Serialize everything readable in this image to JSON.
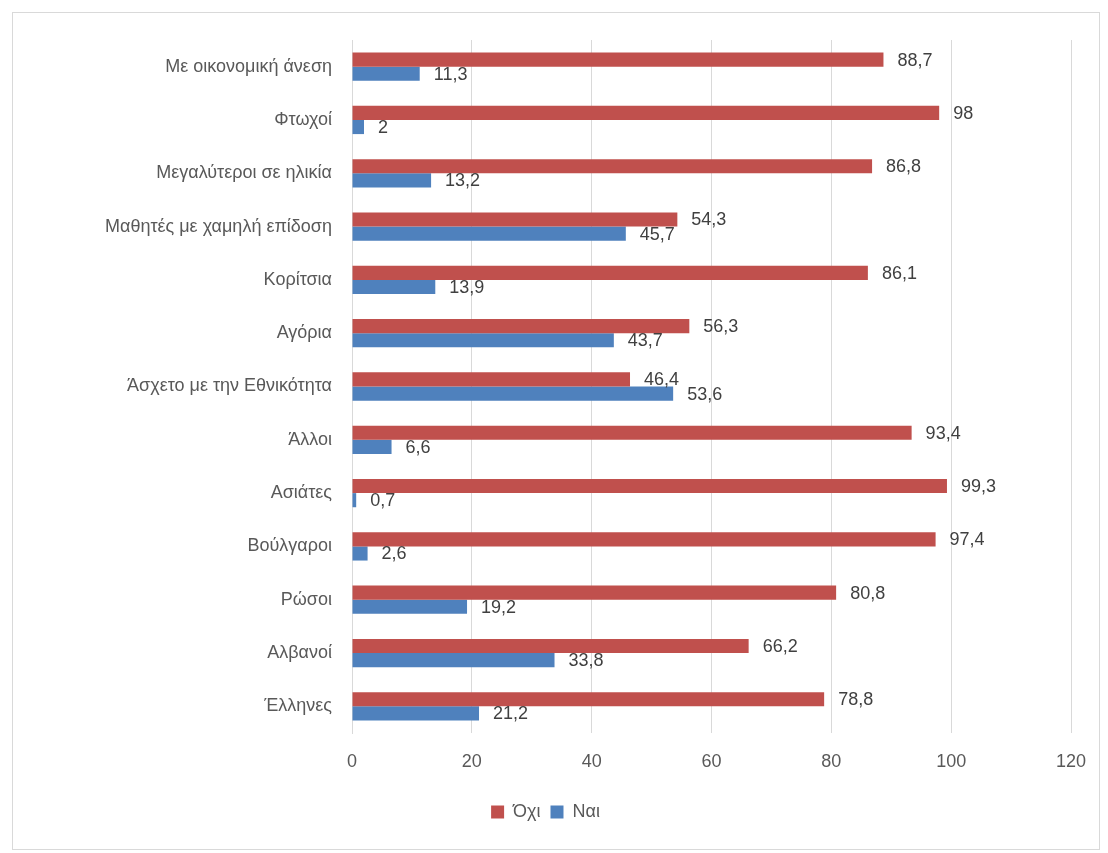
{
  "chart_data": {
    "type": "bar",
    "orientation": "horizontal",
    "categories": [
      "Με οικονομική άνεση",
      "Φτωχοί",
      "Μεγαλύτεροι σε ηλικία",
      "Μαθητές με χαμηλή επίδοση",
      "Κορίτσια",
      "Αγόρια",
      "Άσχετο με την Εθνικότητα",
      "Άλλοι",
      "Ασιάτες",
      "Βούλγαροι",
      "Ρώσοι",
      "Αλβανοί",
      "Έλληνες"
    ],
    "series": [
      {
        "name": "Όχι",
        "color": "#c0504d",
        "values": [
          88.7,
          98,
          86.8,
          54.3,
          86.1,
          56.3,
          46.4,
          93.4,
          99.3,
          97.4,
          80.8,
          66.2,
          78.8
        ],
        "value_labels": [
          "88,7",
          "98",
          "86,8",
          "54,3",
          "86,1",
          "56,3",
          "46,4",
          "93,4",
          "99,3",
          "97,4",
          "80,8",
          "66,2",
          "78,8"
        ]
      },
      {
        "name": "Ναι",
        "color": "#4f81bd",
        "values": [
          11.3,
          2,
          13.2,
          45.7,
          13.9,
          43.7,
          53.6,
          6.6,
          0.7,
          2.6,
          19.2,
          33.8,
          21.2
        ],
        "value_labels": [
          "11,3",
          "2",
          "13,2",
          "45,7",
          "13,9",
          "43,7",
          "53,6",
          "6,6",
          "0,7",
          "2,6",
          "19,2",
          "33,8",
          "21,2"
        ]
      }
    ],
    "xlim": [
      0,
      120
    ],
    "xticks": [
      0,
      20,
      40,
      60,
      80,
      100,
      120
    ],
    "grid": "x",
    "legend": "bottom"
  }
}
